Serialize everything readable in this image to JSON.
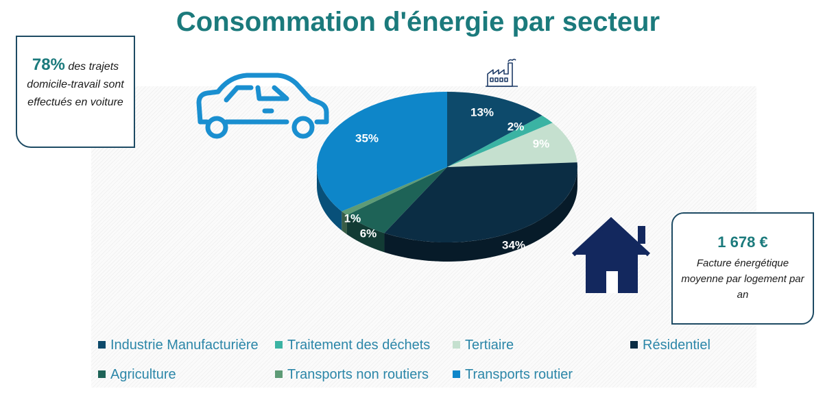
{
  "title": "Consommation d'énergie par secteur",
  "colors": {
    "title": "#1b7a7c",
    "legend_text": "#2b86a8",
    "border": "#1d4a63",
    "car_icon": "#1a8fd0",
    "house_icon": "#13285e",
    "factory_icon": "#1d3a66"
  },
  "callout_left": {
    "value": "78%",
    "text": " des trajets domicile-travail sont effectués en voiture"
  },
  "callout_right": {
    "value": "1 678 €",
    "text": "Facture énergétique moyenne par logement par an"
  },
  "icons": [
    "car-icon",
    "factory-icon",
    "house-icon"
  ],
  "chart_data": {
    "type": "pie",
    "title": "Consommation d'énergie par secteur",
    "style": "3d",
    "legend_position": "bottom",
    "unit": "%",
    "slices": [
      {
        "name": "Industrie Manufacturière",
        "value": 13,
        "label": "13%",
        "color": "#0d4a6b"
      },
      {
        "name": "Traitement des déchets",
        "value": 2,
        "label": "2%",
        "color": "#3bb3a3"
      },
      {
        "name": "Tertiaire",
        "value": 9,
        "label": "9%",
        "color": "#c5e0cf"
      },
      {
        "name": "Résidentiel",
        "value": 34,
        "label": "34%",
        "color": "#0b2d44"
      },
      {
        "name": "Agriculture",
        "value": 6,
        "label": "6%",
        "color": "#1e6357"
      },
      {
        "name": "Transports non routiers",
        "value": 1,
        "label": "1%",
        "color": "#5e9b76"
      },
      {
        "name": "Transports routier",
        "value": 35,
        "label": "35%",
        "color": "#0e86c9"
      }
    ]
  }
}
